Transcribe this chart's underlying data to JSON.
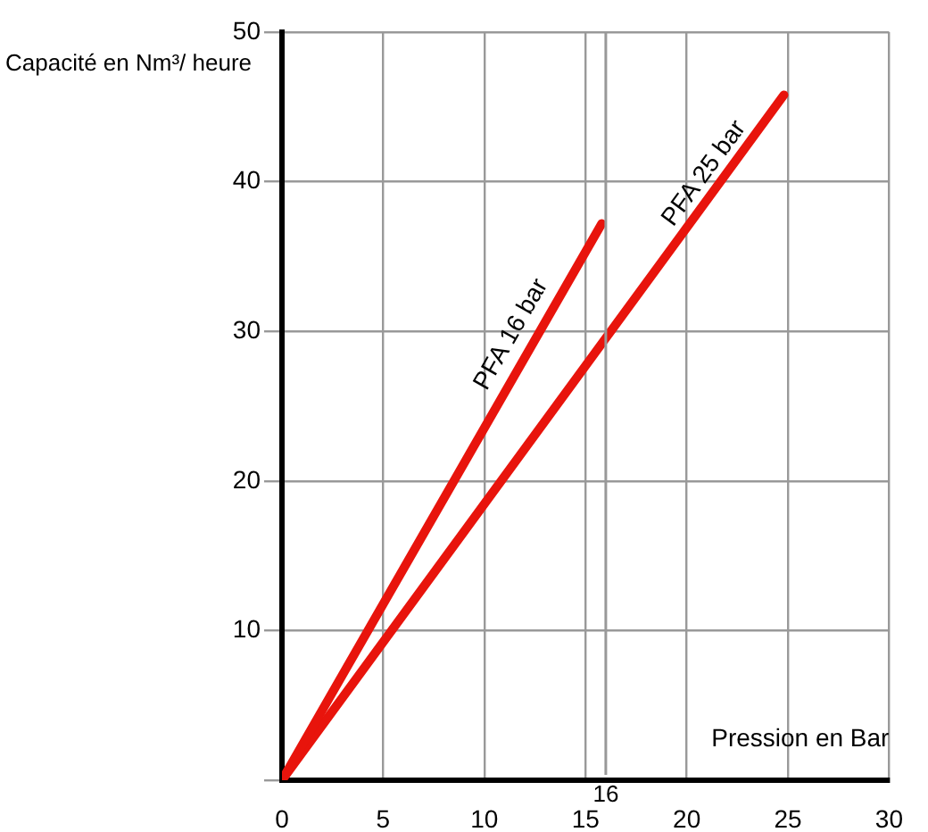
{
  "chart_data": {
    "type": "line",
    "xlabel": "Pression en Bar",
    "ylabel": "Capacité en Nm³/ heure",
    "series": [
      {
        "name": "PFA 16 bar",
        "color": "#e8140c",
        "x": [
          0,
          15.8
        ],
        "values": [
          0,
          37.2
        ]
      },
      {
        "name": "PFA 25 bar",
        "color": "#e8140c",
        "x": [
          0,
          24.8
        ],
        "values": [
          0,
          45.8
        ]
      }
    ],
    "xlim": [
      0,
      30
    ],
    "xticks": [
      0,
      5,
      10,
      15,
      20,
      25,
      30
    ],
    "ylim": [
      0,
      50
    ],
    "yticks": [
      {
        "value": 0,
        "label": null
      },
      10,
      20,
      30,
      40,
      50
    ],
    "ref_lines": [
      {
        "axis": "x",
        "value": 16,
        "label": "16"
      }
    ],
    "grid": true,
    "legend": false,
    "marker": "none",
    "line_style": "solid"
  }
}
